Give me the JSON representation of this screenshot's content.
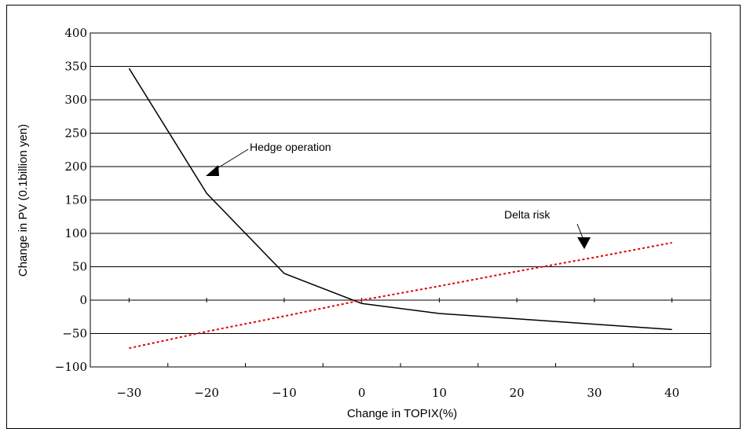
{
  "chart_data": {
    "type": "line",
    "title": "",
    "xlabel": "Change in TOPIX(%)",
    "ylabel": "Change in PV (0.1billion yen)",
    "x": [
      -30,
      -20,
      -10,
      0,
      10,
      20,
      30,
      40
    ],
    "xticks": [
      -30,
      -20,
      -10,
      0,
      10,
      20,
      30,
      40
    ],
    "yticks": [
      -100,
      -50,
      0,
      50,
      100,
      150,
      200,
      250,
      300,
      350,
      400
    ],
    "xlim": [
      -35,
      45
    ],
    "ylim": [
      -100,
      400
    ],
    "grid": "horizontal",
    "legend": "none",
    "series": [
      {
        "name": "Hedge operation",
        "style": "solid",
        "color": "#000000",
        "values": [
          347,
          160,
          40,
          -5,
          -20,
          -28,
          -36,
          -44
        ]
      },
      {
        "name": "Delta risk",
        "style": "dotted",
        "color": "#e00000",
        "values": [
          -72,
          -47,
          -24,
          0,
          21,
          43,
          64,
          86
        ]
      }
    ],
    "annotations": [
      {
        "text": "Hedge operation",
        "series": 0
      },
      {
        "text": "Delta risk",
        "series": 1
      }
    ]
  }
}
